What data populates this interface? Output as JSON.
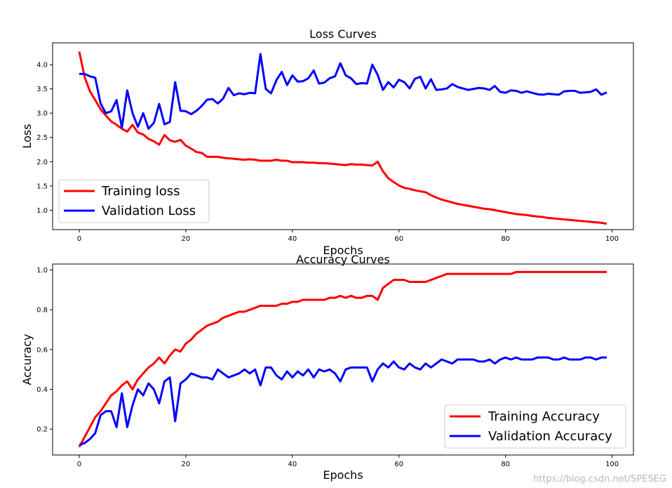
{
  "watermark": "https://blog.csdn.net/SPESEG",
  "chart_data": [
    {
      "type": "line",
      "title": "Loss Curves",
      "xlabel": "Epochs",
      "ylabel": "Loss",
      "xlim": [
        -5,
        104
      ],
      "ylim": [
        0.6,
        4.45
      ],
      "xticks": [
        0,
        20,
        40,
        60,
        80,
        100
      ],
      "yticks": [
        1.0,
        1.5,
        2.0,
        2.5,
        3.0,
        3.5,
        4.0
      ],
      "legend_position": "lower-left",
      "series": [
        {
          "name": "Training loss",
          "color": "#ff0000",
          "values": [
            4.27,
            3.75,
            3.45,
            3.27,
            3.08,
            2.95,
            2.83,
            2.76,
            2.68,
            2.62,
            2.76,
            2.6,
            2.56,
            2.47,
            2.42,
            2.35,
            2.55,
            2.44,
            2.41,
            2.45,
            2.33,
            2.27,
            2.2,
            2.18,
            2.1,
            2.1,
            2.1,
            2.08,
            2.07,
            2.06,
            2.05,
            2.04,
            2.05,
            2.04,
            2.02,
            2.02,
            2.02,
            2.04,
            2.02,
            2.02,
            1.99,
            1.99,
            1.99,
            1.98,
            1.98,
            1.97,
            1.97,
            1.96,
            1.95,
            1.94,
            1.93,
            1.95,
            1.94,
            1.94,
            1.93,
            1.92,
            2.0,
            1.8,
            1.66,
            1.58,
            1.51,
            1.46,
            1.44,
            1.41,
            1.39,
            1.37,
            1.31,
            1.26,
            1.22,
            1.19,
            1.16,
            1.13,
            1.11,
            1.09,
            1.07,
            1.05,
            1.03,
            1.02,
            1.0,
            0.98,
            0.96,
            0.94,
            0.92,
            0.91,
            0.9,
            0.88,
            0.87,
            0.86,
            0.84,
            0.83,
            0.82,
            0.81,
            0.8,
            0.79,
            0.78,
            0.77,
            0.76,
            0.75,
            0.74,
            0.72
          ]
        },
        {
          "name": "Validation Loss",
          "color": "#0000ff",
          "values": [
            3.81,
            3.81,
            3.76,
            3.73,
            3.2,
            3.0,
            3.04,
            3.27,
            2.7,
            3.47,
            3.0,
            2.72,
            3.0,
            2.68,
            2.8,
            3.19,
            2.77,
            2.82,
            3.64,
            3.05,
            3.04,
            2.98,
            3.05,
            3.15,
            3.28,
            3.29,
            3.2,
            3.3,
            3.52,
            3.37,
            3.41,
            3.39,
            3.42,
            3.41,
            4.22,
            3.5,
            3.41,
            3.68,
            3.85,
            3.58,
            3.78,
            3.65,
            3.66,
            3.72,
            3.88,
            3.61,
            3.63,
            3.72,
            3.76,
            4.03,
            3.78,
            3.72,
            3.6,
            3.62,
            3.61,
            4.0,
            3.79,
            3.48,
            3.64,
            3.53,
            3.69,
            3.64,
            3.51,
            3.71,
            3.75,
            3.51,
            3.7,
            3.48,
            3.49,
            3.51,
            3.6,
            3.54,
            3.51,
            3.48,
            3.5,
            3.52,
            3.51,
            3.48,
            3.56,
            3.44,
            3.42,
            3.47,
            3.46,
            3.42,
            3.45,
            3.42,
            3.39,
            3.38,
            3.4,
            3.39,
            3.38,
            3.45,
            3.46,
            3.46,
            3.42,
            3.43,
            3.44,
            3.49,
            3.38,
            3.43
          ]
        }
      ]
    },
    {
      "type": "line",
      "title": "Accuracy Curves",
      "xlabel": "Epochs",
      "ylabel": "Accuracy",
      "xlim": [
        -5,
        104
      ],
      "ylim": [
        0.07,
        1.03
      ],
      "xticks": [
        0,
        20,
        40,
        60,
        80,
        100
      ],
      "yticks": [
        0.2,
        0.4,
        0.6,
        0.8,
        1.0
      ],
      "legend_position": "lower-right",
      "series": [
        {
          "name": "Training Accuracy",
          "color": "#ff0000",
          "values": [
            0.11,
            0.16,
            0.21,
            0.26,
            0.29,
            0.33,
            0.37,
            0.39,
            0.42,
            0.44,
            0.4,
            0.45,
            0.48,
            0.51,
            0.53,
            0.56,
            0.53,
            0.57,
            0.6,
            0.59,
            0.63,
            0.65,
            0.68,
            0.7,
            0.72,
            0.73,
            0.74,
            0.76,
            0.77,
            0.78,
            0.79,
            0.79,
            0.8,
            0.81,
            0.82,
            0.82,
            0.82,
            0.82,
            0.83,
            0.83,
            0.84,
            0.84,
            0.85,
            0.85,
            0.85,
            0.85,
            0.85,
            0.86,
            0.86,
            0.87,
            0.86,
            0.87,
            0.86,
            0.86,
            0.87,
            0.87,
            0.85,
            0.91,
            0.93,
            0.95,
            0.95,
            0.95,
            0.94,
            0.94,
            0.94,
            0.94,
            0.95,
            0.96,
            0.97,
            0.98,
            0.98,
            0.98,
            0.98,
            0.98,
            0.98,
            0.98,
            0.98,
            0.98,
            0.98,
            0.98,
            0.98,
            0.98,
            0.99,
            0.99,
            0.99,
            0.99,
            0.99,
            0.99,
            0.99,
            0.99,
            0.99,
            0.99,
            0.99,
            0.99,
            0.99,
            0.99,
            0.99,
            0.99,
            0.99,
            0.99
          ]
        },
        {
          "name": "Validation Accuracy",
          "color": "#0000ff",
          "values": [
            0.12,
            0.13,
            0.15,
            0.18,
            0.27,
            0.29,
            0.29,
            0.21,
            0.38,
            0.21,
            0.32,
            0.4,
            0.37,
            0.43,
            0.4,
            0.33,
            0.44,
            0.46,
            0.24,
            0.43,
            0.45,
            0.48,
            0.47,
            0.46,
            0.46,
            0.45,
            0.5,
            0.48,
            0.46,
            0.47,
            0.48,
            0.5,
            0.48,
            0.5,
            0.42,
            0.51,
            0.51,
            0.47,
            0.45,
            0.49,
            0.46,
            0.49,
            0.47,
            0.5,
            0.46,
            0.5,
            0.49,
            0.5,
            0.48,
            0.44,
            0.5,
            0.51,
            0.51,
            0.51,
            0.51,
            0.44,
            0.5,
            0.53,
            0.51,
            0.54,
            0.51,
            0.5,
            0.53,
            0.51,
            0.5,
            0.53,
            0.51,
            0.53,
            0.55,
            0.54,
            0.53,
            0.55,
            0.55,
            0.55,
            0.55,
            0.54,
            0.54,
            0.55,
            0.53,
            0.55,
            0.56,
            0.55,
            0.56,
            0.55,
            0.55,
            0.55,
            0.56,
            0.56,
            0.56,
            0.55,
            0.55,
            0.56,
            0.55,
            0.55,
            0.55,
            0.56,
            0.56,
            0.55,
            0.56,
            0.56
          ]
        }
      ]
    }
  ]
}
